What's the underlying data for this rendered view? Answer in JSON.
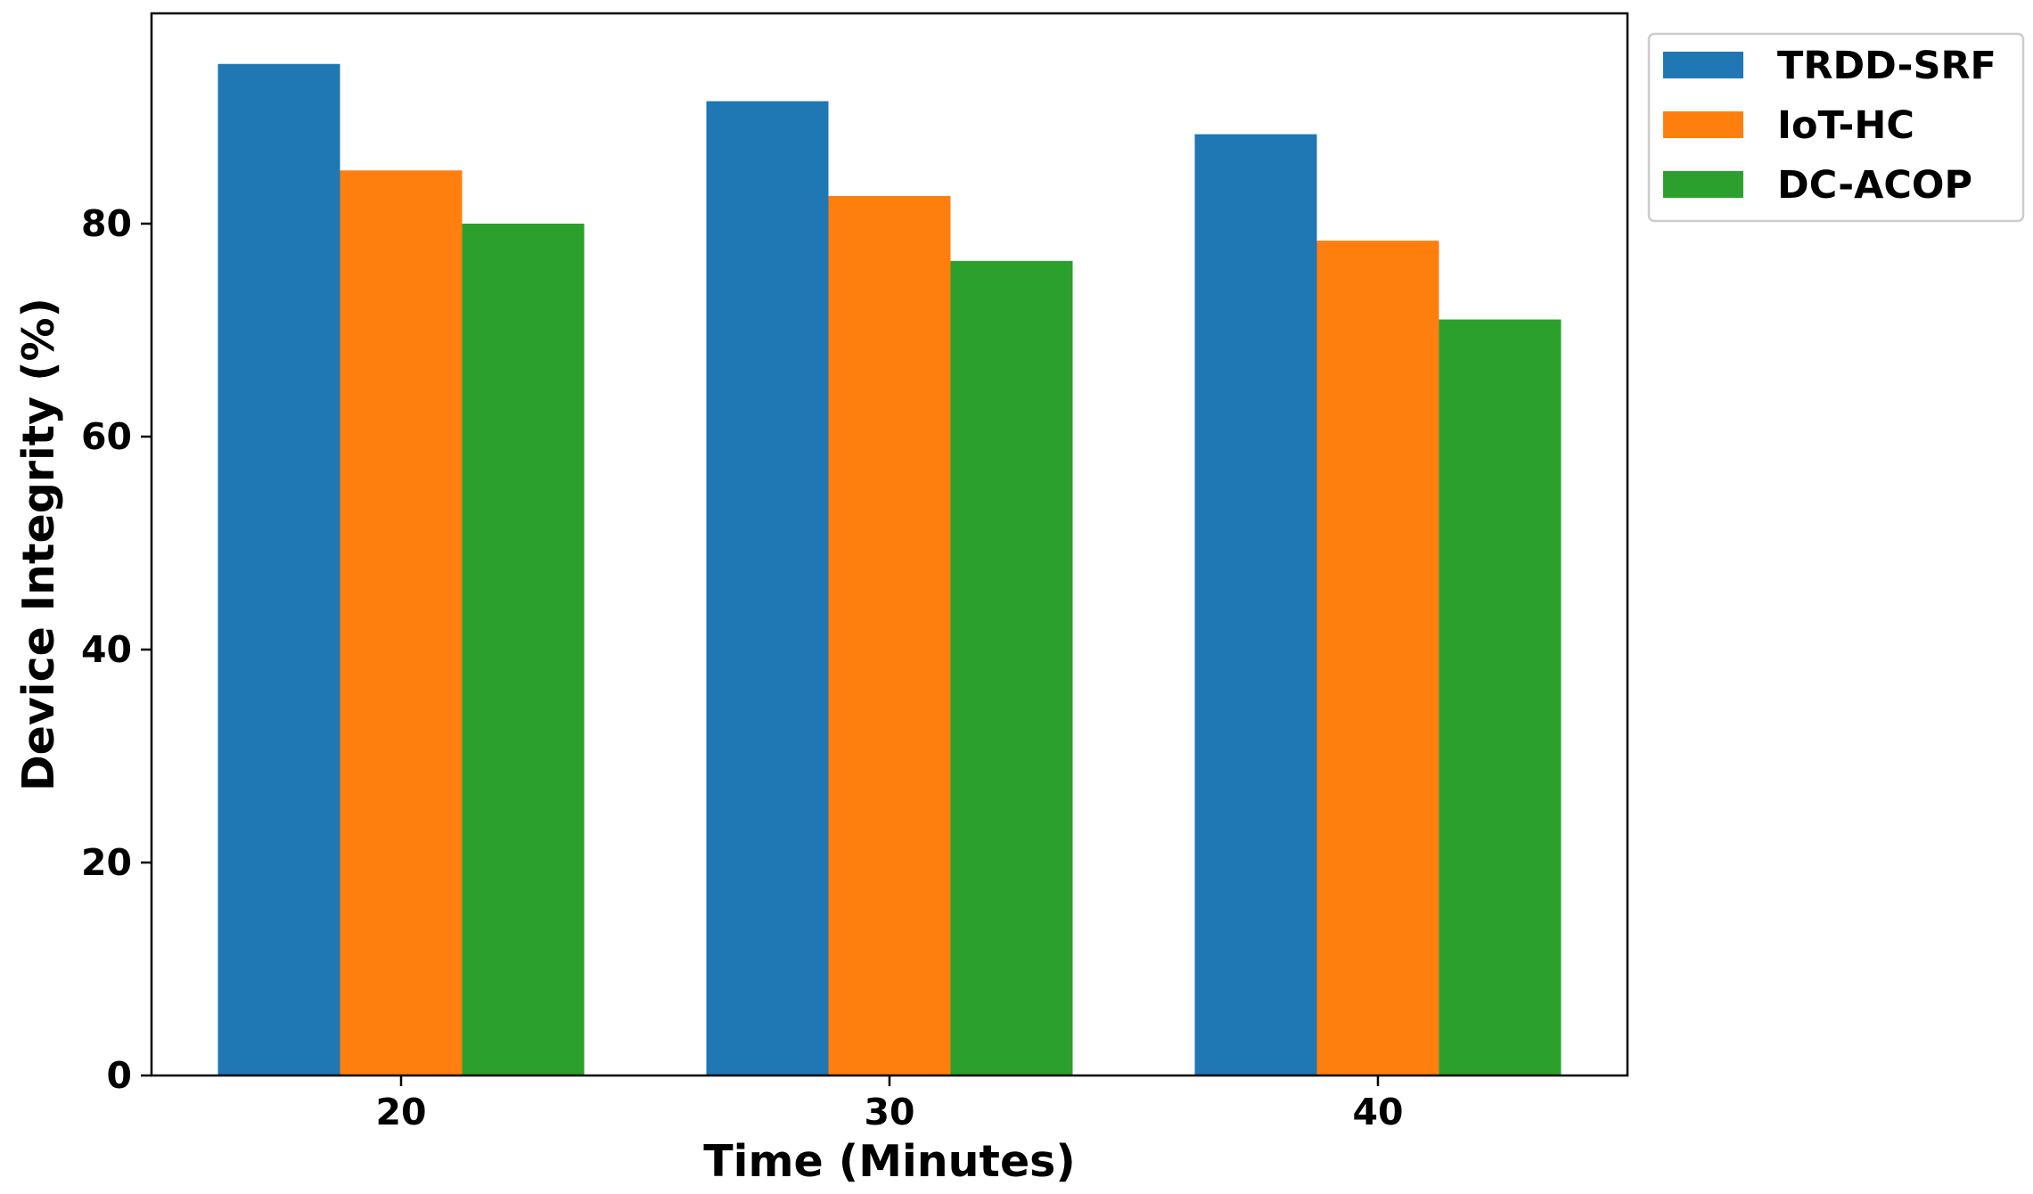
{
  "chart_data": {
    "type": "bar",
    "categories": [
      "20",
      "30",
      "40"
    ],
    "series": [
      {
        "name": "TRDD-SRF",
        "values": [
          95,
          91.5,
          88.4
        ],
        "color": "#1f77b4"
      },
      {
        "name": "IoT-HC",
        "values": [
          85,
          82.6,
          78.4
        ],
        "color": "#ff7f0e"
      },
      {
        "name": "DC-ACOP",
        "values": [
          80,
          76.5,
          71
        ],
        "color": "#2ca02c"
      }
    ],
    "title": "",
    "xlabel": "Time (Minutes)",
    "ylabel": "Device Integrity (%)",
    "ylim": [
      0,
      99.75
    ],
    "yticks": [
      "0",
      "20",
      "40",
      "60",
      "80"
    ],
    "grid": false,
    "legend": "outside-top-right"
  }
}
